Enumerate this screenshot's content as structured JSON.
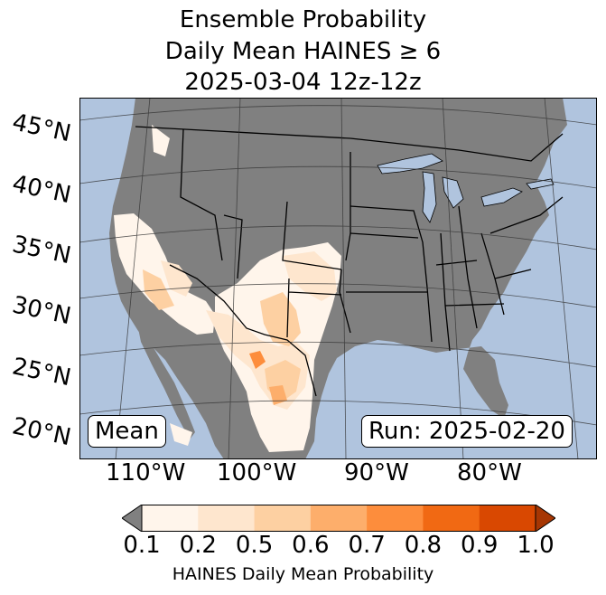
{
  "title": {
    "line1": "Ensemble Probability",
    "line2": "Daily Mean HAINES ≥ 6",
    "line3": "2025-03-04 12z-12z"
  },
  "map": {
    "ocean_color": "#b0c4de",
    "land_color": "#808080",
    "region": "Contiguous United States, northern Mexico, southern Canada",
    "lat_labels": [
      "45°N",
      "40°N",
      "35°N",
      "30°N",
      "25°N",
      "20°N"
    ],
    "lon_labels": [
      "110°W",
      "100°W",
      "90°W",
      "80°W"
    ]
  },
  "boxes": {
    "left": "Mean",
    "right": "Run: 2025-02-20"
  },
  "colorbar": {
    "ticks": [
      "0.1",
      "0.2",
      "0.5",
      "0.6",
      "0.7",
      "0.8",
      "0.9",
      "1.0"
    ],
    "colors": [
      "#fff5eb",
      "#fee6ce",
      "#fdd0a2",
      "#fdae6b",
      "#fd8d3c",
      "#f16913",
      "#d94801",
      "#a63603"
    ],
    "under_color": "#808080",
    "label": "HAINES Daily Mean Probability"
  }
}
